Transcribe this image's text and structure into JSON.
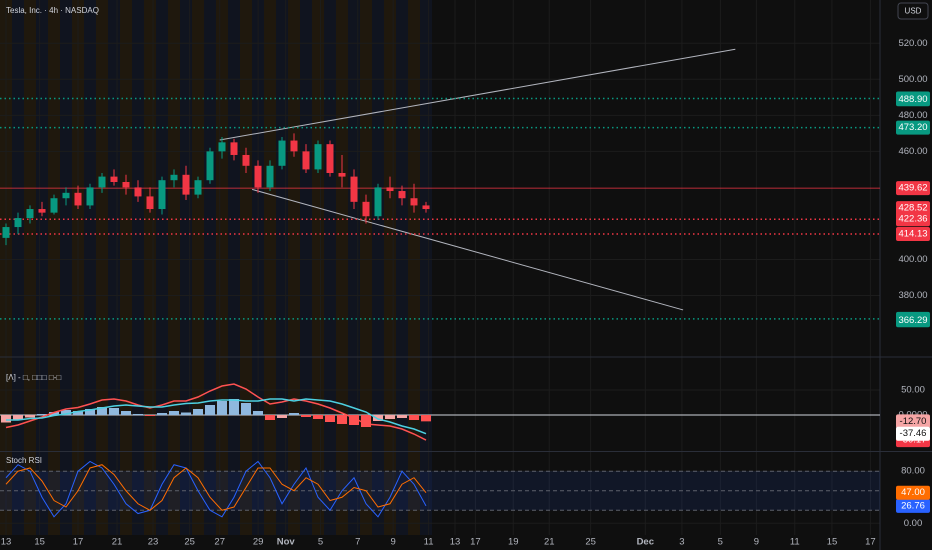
{
  "chart_data": [
    {
      "type": "candlestick",
      "title": "Tesla, Inc. · 4h · NASDAQ",
      "currency": "USD",
      "up_color": "#089981",
      "down_color": "#f23645",
      "open": [
        412,
        418,
        423,
        428,
        426,
        434,
        437,
        430,
        440,
        446,
        443,
        440,
        435,
        428,
        444,
        447,
        436,
        444,
        460,
        465,
        458,
        452,
        440,
        452,
        466,
        460,
        450,
        464,
        448,
        446,
        432,
        424,
        440,
        438,
        434,
        430
      ],
      "high": [
        420,
        426,
        430,
        432,
        436,
        440,
        441,
        442,
        448,
        450,
        447,
        444,
        440,
        446,
        450,
        452,
        446,
        462,
        468,
        467,
        462,
        455,
        455,
        468,
        470,
        464,
        466,
        466,
        458,
        450,
        436,
        442,
        446,
        441,
        442,
        432
      ],
      "low": [
        408,
        414,
        420,
        424,
        425,
        430,
        428,
        428,
        437,
        441,
        436,
        432,
        426,
        425,
        440,
        433,
        434,
        442,
        456,
        455,
        448,
        437,
        438,
        450,
        457,
        448,
        448,
        446,
        440,
        428,
        420,
        422,
        434,
        430,
        426,
        426
      ],
      "close": [
        418,
        423,
        428,
        426,
        434,
        437,
        430,
        440,
        446,
        443,
        440,
        435,
        428,
        444,
        447,
        436,
        444,
        460,
        465,
        458,
        452,
        440,
        452,
        466,
        460,
        450,
        464,
        448,
        446,
        432,
        424,
        440,
        438,
        434,
        430,
        428
      ],
      "xlim": [
        0,
        73.3
      ],
      "xticks": [
        {
          "value": 0.5,
          "label": "13"
        },
        {
          "value": 3.3,
          "label": "15"
        },
        {
          "value": 6.5,
          "label": "17"
        },
        {
          "value": 9.75,
          "label": "21"
        },
        {
          "value": 12.75,
          "label": "23"
        },
        {
          "value": 15.8,
          "label": "25"
        },
        {
          "value": 18.3,
          "label": "27"
        },
        {
          "value": 21.5,
          "label": "29"
        },
        {
          "value": 23.8,
          "label": "Nov"
        },
        {
          "value": 26.7,
          "label": "5"
        },
        {
          "value": 29.8,
          "label": "7"
        },
        {
          "value": 32.75,
          "label": "9"
        },
        {
          "value": 35.7,
          "label": "11"
        },
        {
          "value": 37.9,
          "label": "13"
        },
        {
          "value": 39.6,
          "label": "17"
        },
        {
          "value": 42.75,
          "label": "19"
        },
        {
          "value": 45.75,
          "label": "21"
        },
        {
          "value": 49.2,
          "label": "25"
        },
        {
          "value": 53.75,
          "label": "Dec"
        },
        {
          "value": 56.8,
          "label": "3"
        },
        {
          "value": 60,
          "label": "5"
        },
        {
          "value": 63,
          "label": "9"
        },
        {
          "value": 66.2,
          "label": "11"
        },
        {
          "value": 69.3,
          "label": "15"
        },
        {
          "value": 72.5,
          "label": "17"
        }
      ],
      "ylim": [
        347,
        544
      ],
      "yticks": [
        {
          "value": 380,
          "label": "380.00"
        },
        {
          "value": 400,
          "label": "400.00"
        },
        {
          "value": 460,
          "label": "460.00"
        },
        {
          "value": 480,
          "label": "480.00"
        },
        {
          "value": 500,
          "label": "500.00"
        },
        {
          "value": 520,
          "label": "520.00"
        }
      ],
      "levels": [
        {
          "value": 489.31,
          "color": "#089981",
          "style": "dotted"
        },
        {
          "value": 488.9,
          "label": "488.90",
          "color": "#089981",
          "style": "none"
        },
        {
          "value": 473.2,
          "label": "473.20",
          "color": "#089981",
          "style": "dotted"
        },
        {
          "value": 439.62,
          "color": "#f23645",
          "style": "solid"
        },
        {
          "value": 428.52,
          "color": "#f23645",
          "style": "none"
        },
        {
          "value": 422.36,
          "color": "#f23645",
          "style": "dotted"
        },
        {
          "value": 414.13,
          "color": "#f23645",
          "style": "dotted"
        },
        {
          "value": 367.04,
          "color": "#089981",
          "style": "dotted"
        },
        {
          "value": 366.29,
          "color": "#089981",
          "style": "none"
        }
      ],
      "trendlines": [
        {
          "x": [
            18.3,
            61.25
          ],
          "y": [
            466.3,
            516.7
          ]
        },
        {
          "x": [
            21,
            56.9
          ],
          "y": [
            438.9,
            372
          ]
        }
      ]
    },
    {
      "type": "macd",
      "title": "[Λ] - □, □□□ □-□",
      "ylim": [
        -70,
        110
      ],
      "yticks": [
        {
          "value": 50,
          "label": "50.00"
        },
        {
          "value": 0,
          "label": "0.0000"
        }
      ],
      "histogram": [
        -15,
        -10,
        -5,
        2,
        6,
        10,
        8,
        12,
        16,
        14,
        8,
        2,
        -2,
        4,
        8,
        5,
        12,
        20,
        28,
        32,
        24,
        8,
        -10,
        -6,
        4,
        -4,
        -8,
        -14,
        -18,
        -20,
        -24,
        -12,
        -8,
        -6,
        -10,
        -12.7
      ],
      "histogram_label": "-12.70",
      "series": [
        {
          "color": "#ff5252",
          "values": [
            -25,
            -20,
            -12,
            -4,
            5,
            12,
            15,
            22,
            30,
            32,
            28,
            20,
            14,
            20,
            28,
            28,
            36,
            48,
            58,
            62,
            52,
            36,
            22,
            26,
            32,
            28,
            22,
            14,
            4,
            -6,
            -18,
            -20,
            -22,
            -28,
            -38,
            -50.17
          ]
        },
        {
          "color": "#4dd0e1",
          "values": [
            -10,
            -10,
            -7,
            -6,
            -1,
            2,
            7,
            10,
            14,
            18,
            20,
            18,
            16,
            16,
            20,
            23,
            24,
            28,
            30,
            30,
            28,
            28,
            32,
            32,
            28,
            32,
            30,
            28,
            22,
            14,
            6,
            -8,
            -14,
            -22,
            -28,
            -37.46
          ]
        }
      ]
    },
    {
      "type": "stoch",
      "title": "Stoch RSI",
      "ylim": [
        -18,
        108
      ],
      "yticks": [
        {
          "value": 80,
          "label": "80.00"
        },
        {
          "value": 0,
          "label": "0.00"
        }
      ],
      "band": [
        20,
        80
      ],
      "midline": 50,
      "series": [
        {
          "color": "#2962ff",
          "values": [
            70,
            90,
            80,
            40,
            10,
            30,
            80,
            95,
            85,
            60,
            30,
            15,
            20,
            60,
            90,
            85,
            50,
            20,
            10,
            40,
            80,
            95,
            70,
            30,
            60,
            85,
            40,
            20,
            50,
            70,
            30,
            10,
            40,
            80,
            60,
            26.76
          ]
        },
        {
          "color": "#ff6d00",
          "values": [
            60,
            80,
            85,
            65,
            35,
            25,
            50,
            85,
            90,
            75,
            50,
            30,
            20,
            35,
            70,
            85,
            70,
            40,
            20,
            25,
            55,
            85,
            85,
            60,
            50,
            70,
            60,
            35,
            40,
            55,
            50,
            25,
            30,
            60,
            70,
            47
          ],
          "value_labels_last": "47.00"
        }
      ]
    }
  ]
}
